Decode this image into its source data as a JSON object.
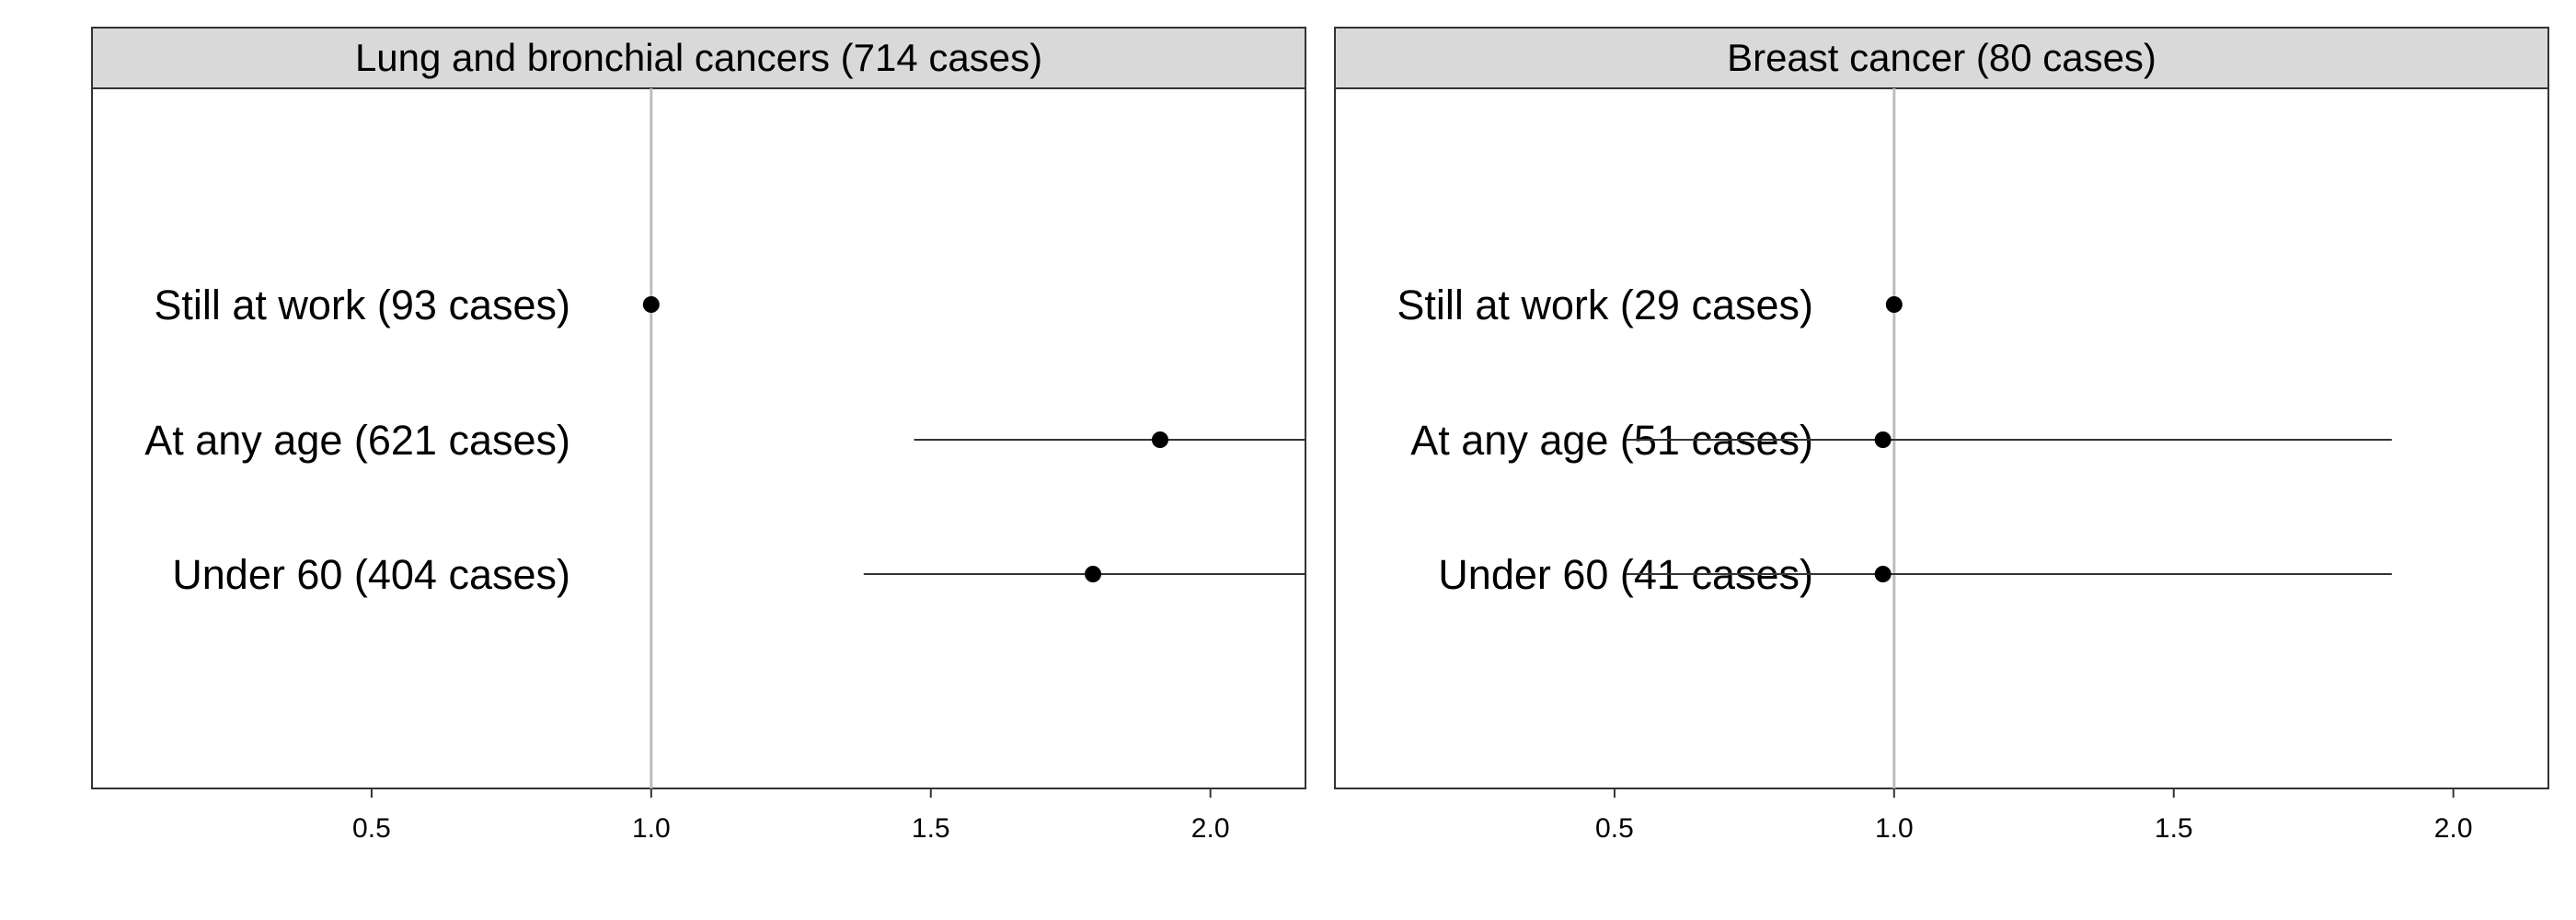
{
  "chart_data": [
    {
      "type": "forest",
      "title": "Lung and bronchial cancers (714 cases)",
      "reference_line": 1.0,
      "xticks": [
        "0.5",
        "1.0",
        "1.5",
        "2.0"
      ],
      "xtick_values": [
        0.5,
        1.0,
        1.5,
        2.0
      ],
      "xlim": [
        0.0,
        2.17
      ],
      "rows": [
        {
          "label": "Still at work (93 cases)",
          "estimate": 1.0,
          "lower": null,
          "upper": null
        },
        {
          "label": "At any age (621 cases)",
          "estimate": 1.91,
          "lower": 1.47,
          "upper": 2.17
        },
        {
          "label": "Under 60 (404 cases)",
          "estimate": 1.79,
          "lower": 1.38,
          "upper": 2.17
        }
      ]
    },
    {
      "type": "forest",
      "title": "Breast cancer (80 cases)",
      "reference_line": 1.0,
      "xticks": [
        "0.5",
        "1.0",
        "1.5",
        "2.0"
      ],
      "xtick_values": [
        0.5,
        1.0,
        1.5,
        2.0
      ],
      "xlim": [
        0.0,
        2.17
      ],
      "rows": [
        {
          "label": "Still at work (29 cases)",
          "estimate": 1.0,
          "lower": null,
          "upper": null
        },
        {
          "label": "At any age (51 cases)",
          "estimate": 0.98,
          "lower": 0.52,
          "upper": 1.89
        },
        {
          "label": "Under 60 (41 cases)",
          "estimate": 0.98,
          "lower": 0.52,
          "upper": 1.89
        }
      ]
    }
  ]
}
